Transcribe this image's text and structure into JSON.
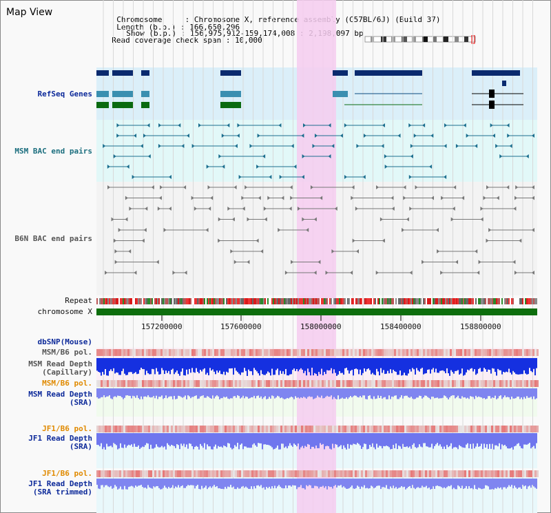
{
  "page": {
    "title": "Map View"
  },
  "info": {
    "chromosome_label": "Chromosome     :",
    "chromosome_value": "Chromosome X, reference assembly (C57BL/6J) (Build 37)",
    "length_label": "Length (b.p.) :",
    "length_value": "166,650,296",
    "show_label": "Show (b.p.) :",
    "show_value": "156,975,912-159,174,008 : 2,198,097 bp",
    "read_cov_label": "Read coverage check span :",
    "read_cov_value": "10,000"
  },
  "tracks": {
    "refseq": "RefSeq Genes",
    "msm_bac": "MSM BAC end pairs",
    "b6n_bac": "B6N BAC end pairs",
    "repeat": "Repeat",
    "chromosome": "chromosome X",
    "dbsnp": "dbSNP(Mouse)",
    "msm_b6_pol_1": "MSM/B6 pol.",
    "msm_read_depth_cap": "MSM Read Depth\n(Capillary)",
    "msm_b6_pol_2": "MSM/B6 pol.",
    "msm_read_depth_sra": "MSM Read Depth\n(SRA)",
    "jf1_b6_pol_1": "JF1/B6 pol.",
    "jf1_read_depth_sra": "JF1 Read Depth\n(SRA)",
    "jf1_b6_pol_2": "JF1/B6 pol.",
    "jf1_read_depth_trim": "JF1 Read Depth\n(SRA trimmed)"
  },
  "ruler": {
    "ticks": [
      "157200000",
      "157600000",
      "158000000",
      "158400000",
      "158800000"
    ]
  },
  "colors": {
    "refseq_dark": "#0a2a6e",
    "refseq_mid": "#3a8fb0",
    "refseq_green": "#0a6a10",
    "msm_bac": "#1b6e8e",
    "b6n_bac": "#777777",
    "chromosome_bar": "#0d6e0d",
    "highlight": "#f6cdf0",
    "depth_blue": "#1530e0",
    "depth_light": "#7f85f0",
    "pol_red": "#e03030"
  }
}
